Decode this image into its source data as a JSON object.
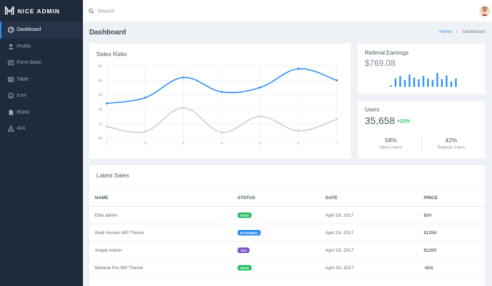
{
  "app": {
    "brand": "NICE ADMIN"
  },
  "sidebar": {
    "items": [
      {
        "label": "Dashboard",
        "icon": "dashboard-gauge-icon",
        "active": true
      },
      {
        "label": "Profile",
        "icon": "user-icon",
        "active": false
      },
      {
        "label": "Form Basic",
        "icon": "form-icon",
        "active": false
      },
      {
        "label": "Table",
        "icon": "table-icon",
        "active": false
      },
      {
        "label": "Icon",
        "icon": "face-icon",
        "active": false
      },
      {
        "label": "Blank",
        "icon": "blank-page-icon",
        "active": false
      },
      {
        "label": "404",
        "icon": "warning-icon",
        "active": false
      }
    ]
  },
  "topbar": {
    "search_placeholder": "Search"
  },
  "page": {
    "title": "Dashboard",
    "breadcrumb": {
      "home": "Home",
      "separator": ">",
      "current": "Dashboard"
    }
  },
  "sales_ratio": {
    "title": "Sales Ratio"
  },
  "referral": {
    "title": "Referral Earnings",
    "amount": "$769.08",
    "bars": [
      0.1,
      0.55,
      0.7,
      0.45,
      0.8,
      0.6,
      0.5,
      0.72,
      0.55,
      0.45,
      0.9,
      0.5,
      0.75,
      0.35,
      0.55
    ]
  },
  "users": {
    "title": "Users",
    "count": "35,658",
    "growth": "+23%",
    "new_pct": "58%",
    "new_label": "New Users",
    "repeat_pct": "42%",
    "repeat_label": "Repeat Users"
  },
  "latest_sales": {
    "title": "Latest Sales",
    "headers": [
      "NAME",
      "STATUS",
      "DATE",
      "PRICE"
    ],
    "rows": [
      {
        "name": "Elite admin",
        "status": "SALE",
        "status_color": "#2ec26a",
        "date": "April 18, 2017",
        "price": "$24"
      },
      {
        "name": "Real Homes WP Theme",
        "status": "EXTENDED",
        "status_color": "#2f8ef5",
        "date": "April 19, 2017",
        "price": "$1250"
      },
      {
        "name": "Ample Admin",
        "status": "Tax",
        "status_color": "#7f56c8",
        "date": "April 19, 2017",
        "price": "$1250"
      },
      {
        "name": "Medical Pro WP Theme",
        "status": "Sale",
        "status_color": "#2ec26a",
        "date": "April 20, 2017",
        "price": "-$24"
      }
    ]
  },
  "chart_data": {
    "type": "line",
    "x": [
      1,
      2,
      3,
      4,
      5,
      6,
      7
    ],
    "series": [
      {
        "values": [
          2.4,
          2.8,
          4.2,
          3.2,
          3.5,
          4.8,
          4.0
        ],
        "color": "#2f8ef5"
      },
      {
        "values": [
          0.8,
          0.45,
          2.1,
          0.4,
          1.5,
          0.5,
          1.3
        ],
        "color": "#cfcfcf"
      }
    ],
    "yticks": [
      "0k",
      "1k",
      "2k",
      "3k",
      "4k",
      "5k"
    ],
    "ylim": [
      0,
      5
    ],
    "xlim": [
      1,
      7
    ],
    "grid": true
  },
  "colors": {
    "accent": "#2f8ef5",
    "sidebar": "#1f2a3a",
    "success": "#2ec26a"
  }
}
